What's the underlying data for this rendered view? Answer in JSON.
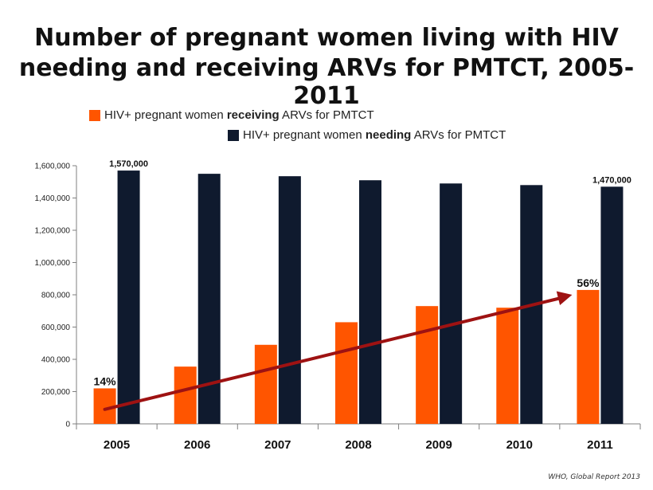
{
  "title_line_1": "Number of pregnant women living with HIV",
  "title_line_2": "needing and receiving ARVs for PMTCT, 2005-2011",
  "legend": {
    "receiving": {
      "prefix": "HIV+ pregnant women",
      "bold": "receiving",
      "suffix": " ARVs for PMTCT",
      "color": "#ff5500"
    },
    "needing": {
      "prefix": "HIV+ pregnant women",
      "bold": "needing",
      "suffix": " ARVs for PMTCT",
      "color": "#0f1a2e"
    }
  },
  "source": "WHO, Global Report 2013",
  "chart_data": {
    "type": "bar",
    "categories": [
      "2005",
      "2006",
      "2007",
      "2008",
      "2009",
      "2010",
      "2011"
    ],
    "series": [
      {
        "name": "HIV+ pregnant women receiving ARVs for PMTCT",
        "color": "#ff5500",
        "values": [
          220000,
          355000,
          490000,
          630000,
          730000,
          720000,
          830000
        ]
      },
      {
        "name": "HIV+ pregnant women needing ARVs for PMTCT",
        "color": "#0f1a2e",
        "values": [
          1570000,
          1550000,
          1535000,
          1510000,
          1490000,
          1480000,
          1470000
        ]
      }
    ],
    "ylim": [
      0,
      1600000
    ],
    "yticks": [
      0,
      200000,
      400000,
      600000,
      800000,
      1000000,
      1200000,
      1400000,
      1600000
    ],
    "ytick_labels": [
      "0",
      "200,000",
      "400,000",
      "600,000",
      "800,000",
      "1,000,000",
      "1,200,000",
      "1,400,000",
      "1,600,000"
    ],
    "data_labels": [
      {
        "category": "2005",
        "series": 1,
        "text": "1,570,000"
      },
      {
        "category": "2011",
        "series": 1,
        "text": "1,470,000"
      }
    ],
    "annotations": [
      {
        "category": "2005",
        "text": "14%"
      },
      {
        "category": "2011",
        "text": "56%"
      }
    ],
    "trend_arrow": {
      "from": {
        "category": "2005",
        "value": 90000
      },
      "to": {
        "category": "2011",
        "value": 800000
      },
      "color": "#9e1212"
    },
    "grid": false,
    "legend_position": "top"
  }
}
